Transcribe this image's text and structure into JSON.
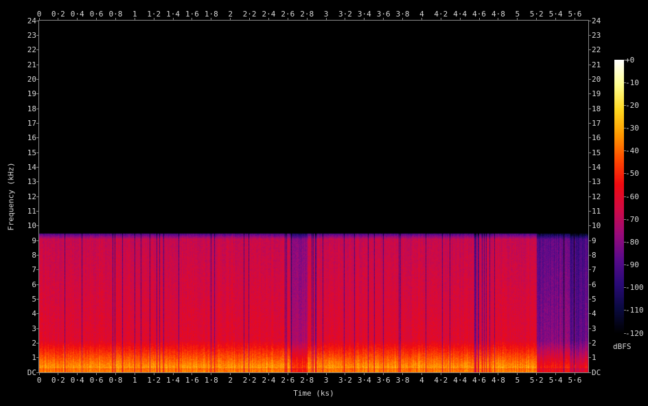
{
  "chart_data": {
    "type": "heatmap",
    "title": "",
    "xlabel": "Time (ks)",
    "ylabel": "Frequency (kHz)",
    "xlim": [
      0,
      5.74
    ],
    "ylim": [
      0,
      24
    ],
    "x_ticks": [
      0,
      0.2,
      0.4,
      0.6,
      0.8,
      1,
      1.2,
      1.4,
      1.6,
      1.8,
      2,
      2.2,
      2.4,
      2.6,
      2.8,
      3,
      3.2,
      3.4,
      3.6,
      3.8,
      4,
      4.2,
      4.4,
      4.6,
      4.8,
      5,
      5.2,
      5.4,
      5.6
    ],
    "x_tick_labels": [
      "0",
      "0·2",
      "0·4",
      "0·6",
      "0·8",
      "1",
      "1·2",
      "1·4",
      "1·6",
      "1·8",
      "2",
      "2·2",
      "2·4",
      "2·6",
      "2·8",
      "3",
      "3·2",
      "3·4",
      "3·6",
      "3·8",
      "4",
      "4·2",
      "4·4",
      "4·6",
      "4·8",
      "5",
      "5·2",
      "5·4",
      "5·6"
    ],
    "y_ticks": [
      0,
      1,
      2,
      3,
      4,
      5,
      6,
      7,
      8,
      9,
      10,
      11,
      12,
      13,
      14,
      15,
      16,
      17,
      18,
      19,
      20,
      21,
      22,
      23,
      24
    ],
    "y_tick_labels": [
      "DC",
      "1",
      "2",
      "3",
      "4",
      "5",
      "6",
      "7",
      "8",
      "9",
      "10",
      "11",
      "12",
      "13",
      "14",
      "15",
      "16",
      "17",
      "18",
      "19",
      "20",
      "21",
      "22",
      "23",
      "24"
    ],
    "content_upper_frequency_khz": 9.4,
    "colorbar": {
      "unit": "dBFS",
      "range": [
        -120,
        0
      ],
      "ticks": [
        0,
        -10,
        -20,
        -30,
        -40,
        -50,
        -60,
        -70,
        -80,
        -90,
        -100,
        -110,
        -120
      ],
      "tick_labels": [
        "+0",
        "-10",
        "-20",
        "-30",
        "-40",
        "-50",
        "-60",
        "-70",
        "-80",
        "-90",
        "-100",
        "-110",
        "-120"
      ],
      "colormap": [
        "#000000",
        "#0a0a40",
        "#2a0a78",
        "#5a0a8a",
        "#9a0a7a",
        "#d00a45",
        "#f00a10",
        "#ff4a00",
        "#ff9a00",
        "#ffd820",
        "#ffff90",
        "#ffffff"
      ]
    },
    "background_color": "#000000",
    "axis_color": "#888888",
    "text_color": "#d8d8d8"
  }
}
